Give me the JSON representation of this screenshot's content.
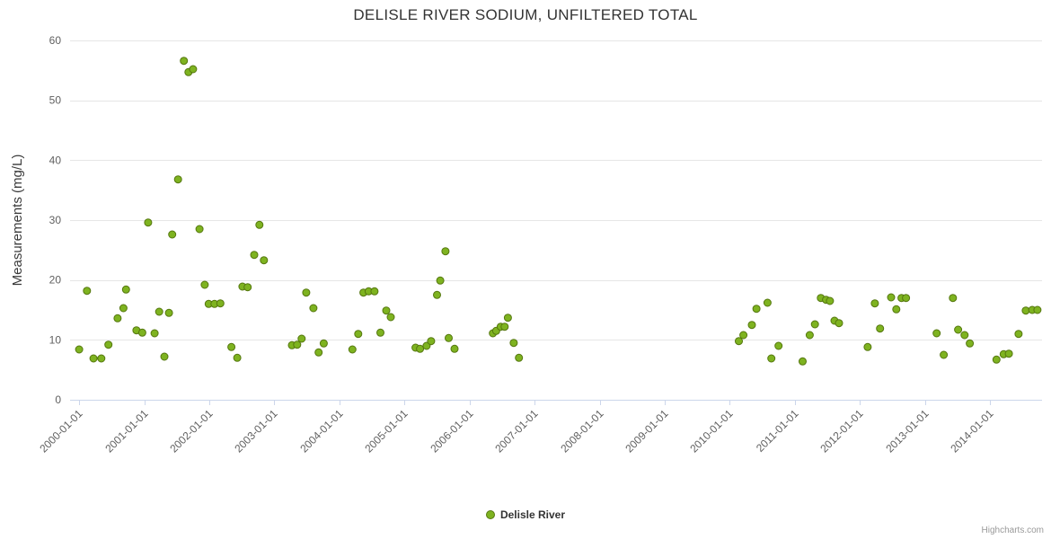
{
  "title": "DELISLE RIVER SODIUM, UNFILTERED TOTAL",
  "credits": "Highcharts.com",
  "chart_data": {
    "type": "scatter",
    "title": "DELISLE RIVER SODIUM, UNFILTERED TOTAL",
    "xlabel": "",
    "ylabel": "Measurements (mg/L)",
    "ylim": [
      0,
      60
    ],
    "y_ticks": [
      0,
      10,
      20,
      30,
      40,
      50,
      60
    ],
    "xlim": [
      1999.86,
      2014.8
    ],
    "x_unit": "decimal-year",
    "x_ticks": [
      2000,
      2001,
      2002,
      2003,
      2004,
      2005,
      2006,
      2007,
      2008,
      2009,
      2010,
      2011,
      2012,
      2013,
      2014
    ],
    "x_tick_labels": [
      "2000-01-01",
      "2001-01-01",
      "2002-01-01",
      "2003-01-01",
      "2004-01-01",
      "2005-01-01",
      "2006-01-01",
      "2007-01-01",
      "2008-01-01",
      "2009-01-01",
      "2010-01-01",
      "2011-01-01",
      "2012-01-01",
      "2013-01-01",
      "2014-01-01"
    ],
    "grid": "horizontal",
    "legend_position": "bottom-center",
    "series": [
      {
        "name": "Delisle River",
        "color": "#7eb320",
        "marker_stroke": "#55770f",
        "points": [
          [
            2000.0,
            8.4
          ],
          [
            2000.12,
            18.2
          ],
          [
            2000.22,
            6.9
          ],
          [
            2000.34,
            6.9
          ],
          [
            2000.45,
            9.2
          ],
          [
            2000.59,
            13.6
          ],
          [
            2000.68,
            15.3
          ],
          [
            2000.72,
            18.4
          ],
          [
            2000.88,
            11.6
          ],
          [
            2000.97,
            11.2
          ],
          [
            2001.06,
            29.6
          ],
          [
            2001.16,
            11.1
          ],
          [
            2001.23,
            14.7
          ],
          [
            2001.31,
            7.2
          ],
          [
            2001.38,
            14.5
          ],
          [
            2001.43,
            27.6
          ],
          [
            2001.52,
            36.8
          ],
          [
            2001.61,
            56.6
          ],
          [
            2001.68,
            54.7
          ],
          [
            2001.75,
            55.2
          ],
          [
            2001.85,
            28.5
          ],
          [
            2001.93,
            19.2
          ],
          [
            2001.99,
            16.0
          ],
          [
            2002.08,
            16.0
          ],
          [
            2002.17,
            16.1
          ],
          [
            2002.34,
            8.8
          ],
          [
            2002.43,
            7.0
          ],
          [
            2002.51,
            18.9
          ],
          [
            2002.59,
            18.8
          ],
          [
            2002.69,
            24.2
          ],
          [
            2002.77,
            29.2
          ],
          [
            2002.84,
            23.3
          ],
          [
            2003.27,
            9.1
          ],
          [
            2003.35,
            9.2
          ],
          [
            2003.42,
            10.2
          ],
          [
            2003.49,
            17.9
          ],
          [
            2003.6,
            15.3
          ],
          [
            2003.68,
            7.9
          ],
          [
            2003.76,
            9.4
          ],
          [
            2004.2,
            8.4
          ],
          [
            2004.29,
            11.0
          ],
          [
            2004.37,
            17.9
          ],
          [
            2004.45,
            18.1
          ],
          [
            2004.54,
            18.1
          ],
          [
            2004.63,
            11.2
          ],
          [
            2004.72,
            14.9
          ],
          [
            2004.79,
            13.8
          ],
          [
            2005.17,
            8.7
          ],
          [
            2005.24,
            8.5
          ],
          [
            2005.34,
            9.0
          ],
          [
            2005.41,
            9.8
          ],
          [
            2005.5,
            17.5
          ],
          [
            2005.55,
            19.9
          ],
          [
            2005.63,
            24.8
          ],
          [
            2005.68,
            10.3
          ],
          [
            2005.77,
            8.5
          ],
          [
            2006.36,
            11.1
          ],
          [
            2006.41,
            11.5
          ],
          [
            2006.48,
            12.2
          ],
          [
            2006.54,
            12.2
          ],
          [
            2006.59,
            13.7
          ],
          [
            2006.68,
            9.5
          ],
          [
            2006.76,
            7.0
          ],
          [
            2010.14,
            9.8
          ],
          [
            2010.21,
            10.8
          ],
          [
            2010.34,
            12.5
          ],
          [
            2010.41,
            15.2
          ],
          [
            2010.58,
            16.2
          ],
          [
            2010.64,
            6.9
          ],
          [
            2010.75,
            9.0
          ],
          [
            2011.12,
            6.4
          ],
          [
            2011.23,
            10.8
          ],
          [
            2011.31,
            12.6
          ],
          [
            2011.4,
            17.0
          ],
          [
            2011.48,
            16.7
          ],
          [
            2011.54,
            16.5
          ],
          [
            2011.61,
            13.2
          ],
          [
            2011.68,
            12.8
          ],
          [
            2012.12,
            8.8
          ],
          [
            2012.23,
            16.1
          ],
          [
            2012.31,
            11.9
          ],
          [
            2012.48,
            17.1
          ],
          [
            2012.56,
            15.1
          ],
          [
            2012.64,
            17.0
          ],
          [
            2012.71,
            17.0
          ],
          [
            2013.18,
            11.1
          ],
          [
            2013.29,
            7.5
          ],
          [
            2013.43,
            17.0
          ],
          [
            2013.51,
            11.7
          ],
          [
            2013.61,
            10.8
          ],
          [
            2013.69,
            9.4
          ],
          [
            2014.1,
            6.7
          ],
          [
            2014.21,
            7.6
          ],
          [
            2014.29,
            7.7
          ],
          [
            2014.44,
            11.0
          ],
          [
            2014.55,
            14.9
          ],
          [
            2014.65,
            15.0
          ],
          [
            2014.73,
            15.0
          ]
        ]
      }
    ]
  }
}
